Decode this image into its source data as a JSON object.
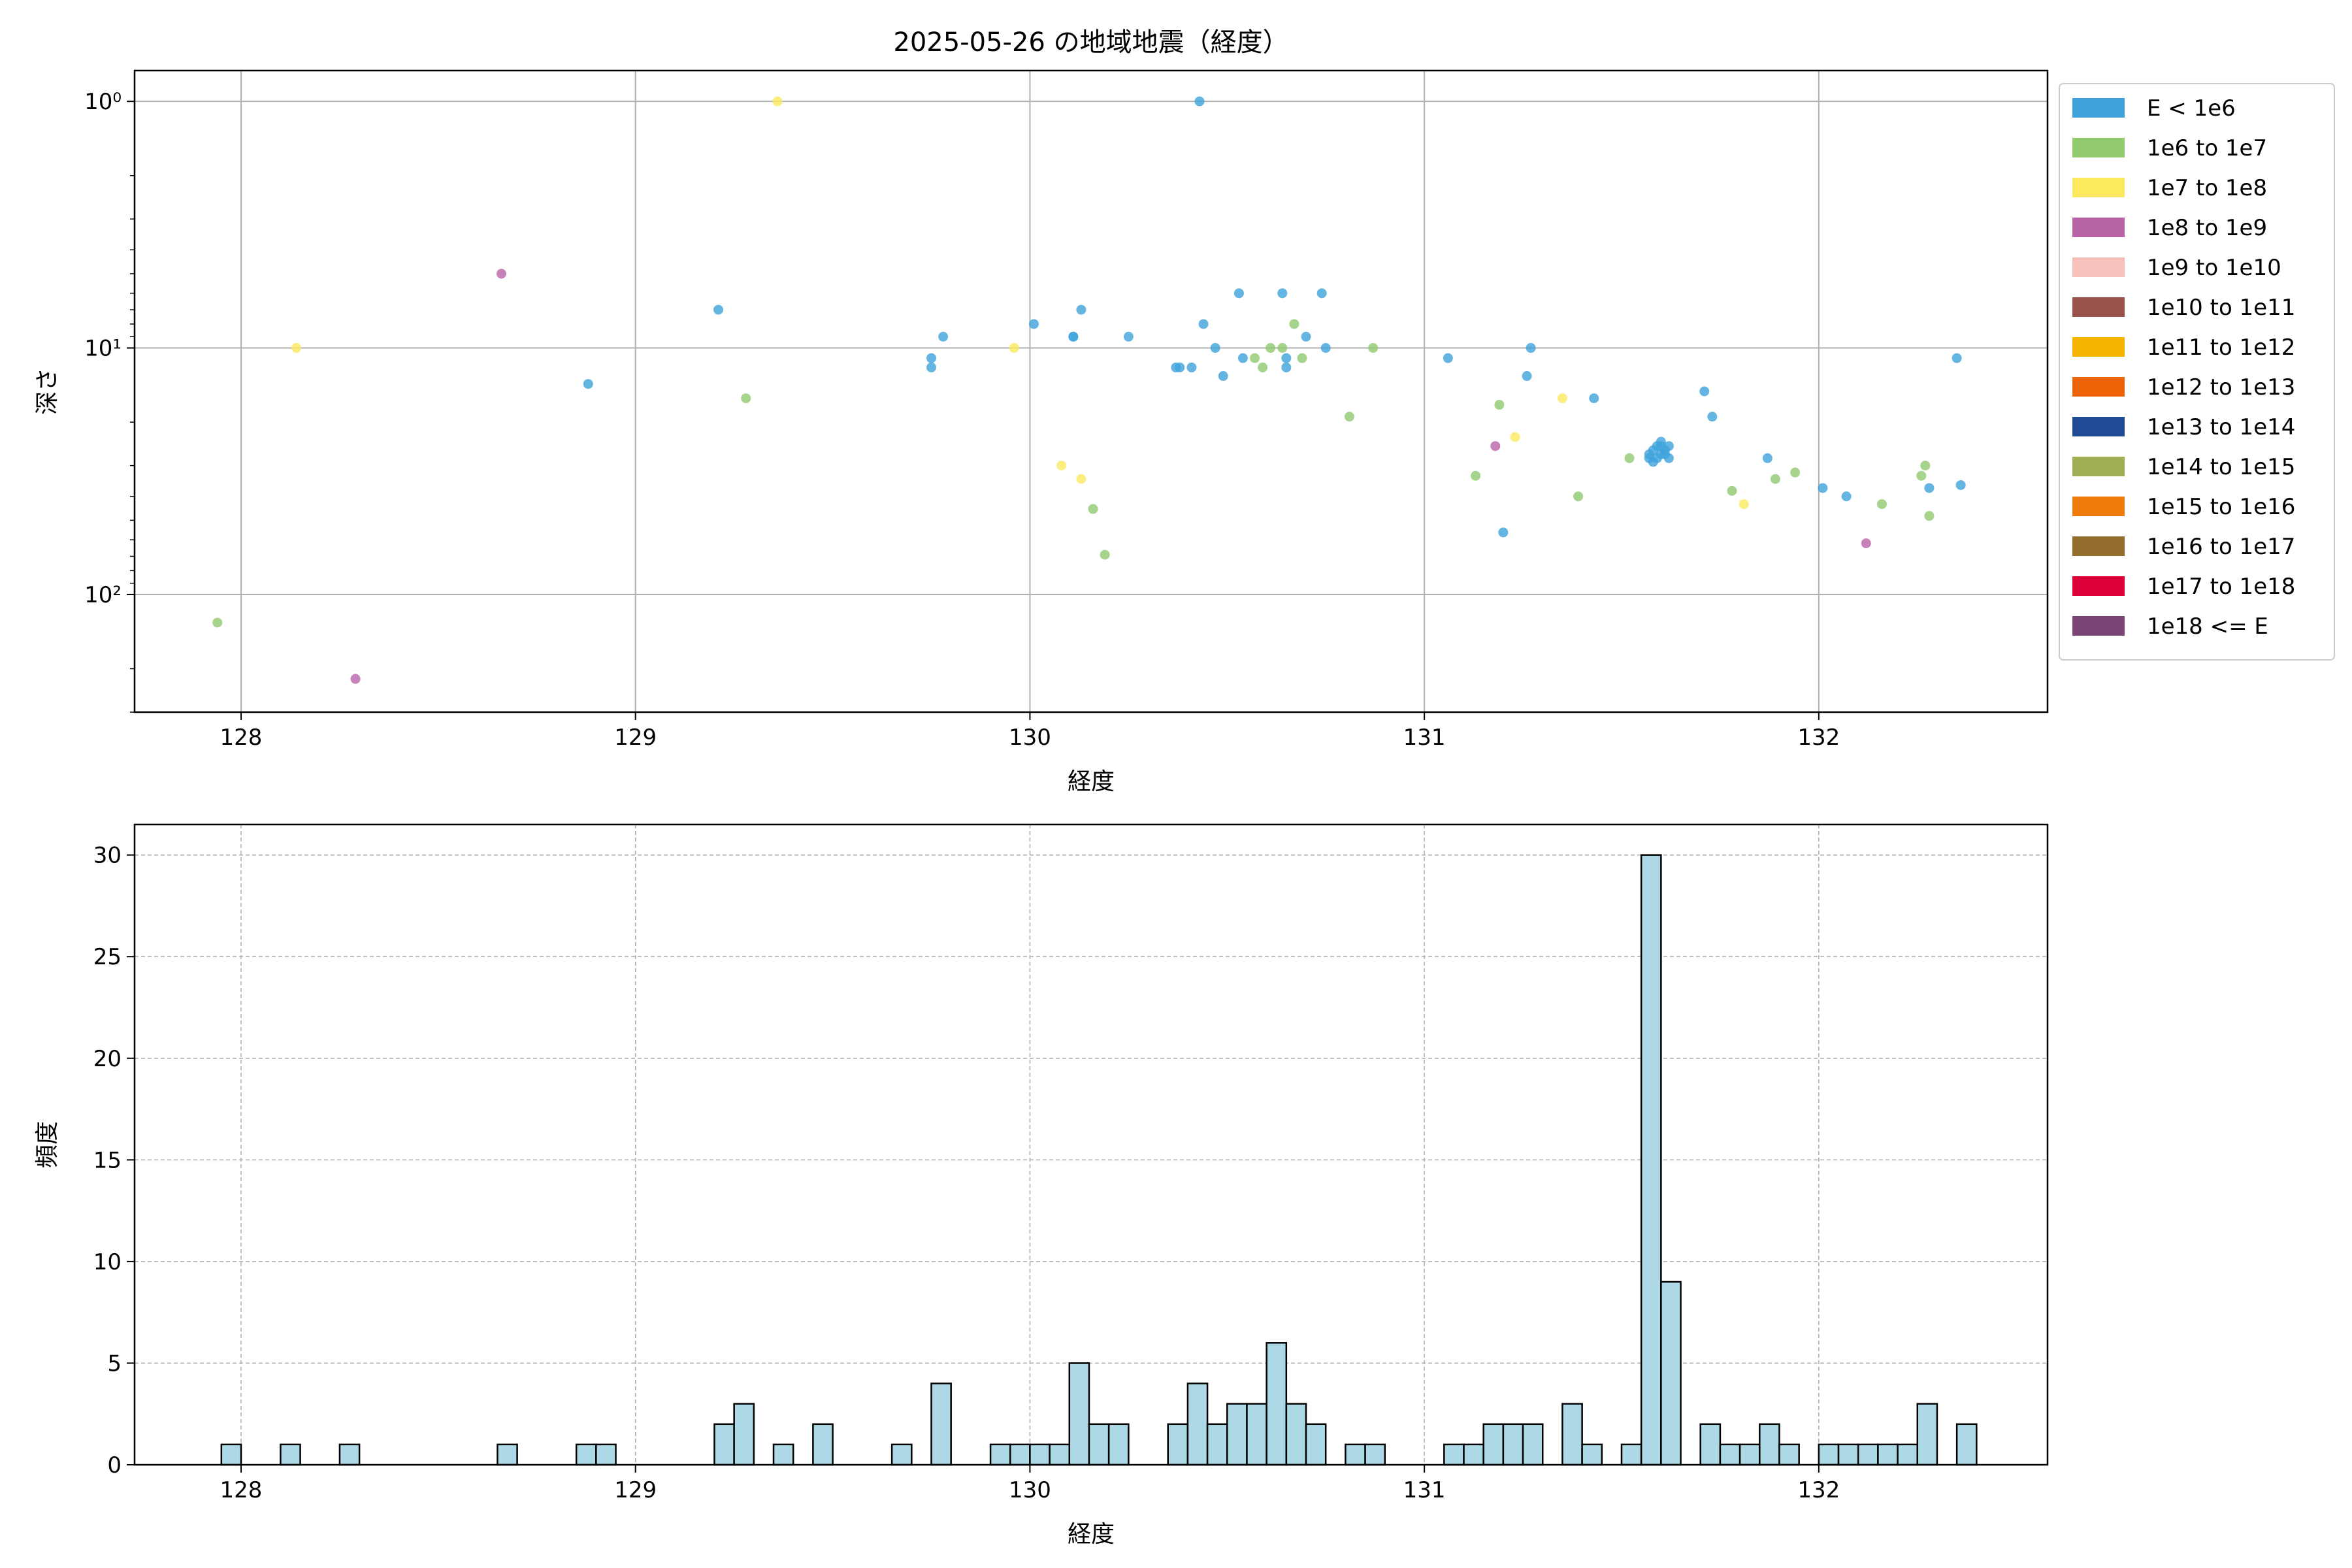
{
  "chart_data": [
    {
      "type": "scatter",
      "title": "2025-05-26 の地域地震（経度）",
      "xlabel": "経度",
      "ylabel": "深さ",
      "xlim": [
        127.73,
        132.58
      ],
      "ylim": [
        300,
        0.75
      ],
      "yscale": "log-inverted",
      "xticks": [
        128,
        129,
        130,
        131,
        132
      ],
      "yticks": [
        {
          "value": 1,
          "label": "10⁰"
        },
        {
          "value": 10,
          "label": "10¹"
        },
        {
          "value": 100,
          "label": "10²"
        }
      ],
      "grid": true,
      "legend": {
        "placement": "outside-right",
        "entries": [
          {
            "label": "E < 1e6",
            "color": "#3fa2dc"
          },
          {
            "label": "1e6 to 1e7",
            "color": "#91c96f"
          },
          {
            "label": "1e7 to 1e8",
            "color": "#fbea5e"
          },
          {
            "label": "1e8 to 1e9",
            "color": "#b963a7"
          },
          {
            "label": "1e9 to 1e10",
            "color": "#f6c0bb"
          },
          {
            "label": "1e10 to 1e11",
            "color": "#98534c"
          },
          {
            "label": "1e11 to 1e12",
            "color": "#f6b401"
          },
          {
            "label": "1e12 to 1e13",
            "color": "#ec6405"
          },
          {
            "label": "1e13 to 1e14",
            "color": "#1f4b95"
          },
          {
            "label": "1e14 to 1e15",
            "color": "#9eae55"
          },
          {
            "label": "1e15 to 1e16",
            "color": "#ee7b0a"
          },
          {
            "label": "1e16 to 1e17",
            "color": "#926d2c"
          },
          {
            "label": "1e17 to 1e18",
            "color": "#dc0039"
          },
          {
            "label": "1e18 <= E",
            "color": "#7a4474"
          }
        ]
      },
      "series": [
        {
          "name": "E < 1e6",
          "color": "#3fa2dc",
          "points": [
            [
              128.88,
              14
            ],
            [
              129.21,
              7
            ],
            [
              129.75,
              12
            ],
            [
              129.75,
              11
            ],
            [
              129.78,
              9
            ],
            [
              130.01,
              8
            ],
            [
              130.11,
              9
            ],
            [
              130.11,
              9
            ],
            [
              130.13,
              7
            ],
            [
              130.25,
              9
            ],
            [
              130.37,
              12
            ],
            [
              130.38,
              12
            ],
            [
              130.41,
              12
            ],
            [
              130.43,
              1
            ],
            [
              130.44,
              8
            ],
            [
              130.47,
              10
            ],
            [
              130.49,
              13
            ],
            [
              130.53,
              6
            ],
            [
              130.54,
              11
            ],
            [
              130.64,
              6
            ],
            [
              130.65,
              11
            ],
            [
              130.65,
              12
            ],
            [
              130.7,
              9
            ],
            [
              130.74,
              6
            ],
            [
              130.75,
              10
            ],
            [
              131.06,
              11
            ],
            [
              131.2,
              56
            ],
            [
              131.26,
              13
            ],
            [
              131.27,
              10
            ],
            [
              131.43,
              16
            ],
            [
              131.57,
              28
            ],
            [
              131.57,
              27
            ],
            [
              131.58,
              26
            ],
            [
              131.58,
              29
            ],
            [
              131.59,
              25
            ],
            [
              131.6,
              27
            ],
            [
              131.6,
              24
            ],
            [
              131.61,
              26
            ],
            [
              131.62,
              25
            ],
            [
              131.62,
              28
            ],
            [
              131.59,
              28
            ],
            [
              131.61,
              27
            ],
            [
              131.6,
              25
            ],
            [
              131.71,
              15
            ],
            [
              131.73,
              19
            ],
            [
              131.87,
              28
            ],
            [
              132.01,
              37
            ],
            [
              132.07,
              40
            ],
            [
              132.28,
              37
            ],
            [
              132.35,
              11
            ],
            [
              132.36,
              36
            ]
          ]
        },
        {
          "name": "1e6 to 1e7",
          "color": "#91c96f",
          "points": [
            [
              127.94,
              130
            ],
            [
              129.28,
              16
            ],
            [
              130.16,
              45
            ],
            [
              130.19,
              69
            ],
            [
              130.57,
              11
            ],
            [
              130.59,
              12
            ],
            [
              130.61,
              10
            ],
            [
              130.64,
              10
            ],
            [
              130.67,
              8
            ],
            [
              130.69,
              11
            ],
            [
              130.81,
              19
            ],
            [
              130.87,
              10
            ],
            [
              131.13,
              33
            ],
            [
              131.19,
              17
            ],
            [
              131.39,
              40
            ],
            [
              131.52,
              28
            ],
            [
              131.78,
              38
            ],
            [
              131.89,
              34
            ],
            [
              131.94,
              32
            ],
            [
              132.16,
              43
            ],
            [
              132.26,
              33
            ],
            [
              132.27,
              30
            ],
            [
              132.28,
              48
            ]
          ]
        },
        {
          "name": "1e7 to 1e8",
          "color": "#fbea5e",
          "points": [
            [
              128.14,
              10
            ],
            [
              129.36,
              1
            ],
            [
              129.96,
              10
            ],
            [
              130.08,
              30
            ],
            [
              130.13,
              34
            ],
            [
              131.23,
              23
            ],
            [
              131.35,
              16
            ],
            [
              131.81,
              43
            ]
          ]
        },
        {
          "name": "1e8 to 1e9",
          "color": "#b963a7",
          "points": [
            [
              128.29,
              220
            ],
            [
              128.66,
              5
            ],
            [
              131.18,
              25
            ],
            [
              132.12,
              62
            ]
          ]
        }
      ]
    },
    {
      "type": "bar",
      "title": "",
      "xlabel": "経度",
      "ylabel": "頻度",
      "xlim": [
        127.73,
        132.58
      ],
      "ylim": [
        0,
        31.5
      ],
      "xticks": [
        128,
        129,
        130,
        131,
        132
      ],
      "yticks": [
        0,
        5,
        10,
        15,
        20,
        25,
        30
      ],
      "grid": "dashed",
      "color": "#add8e6",
      "edgecolor": "#000000",
      "bin_width": 0.05,
      "bins": [
        {
          "x": 127.95,
          "count": 1
        },
        {
          "x": 128.1,
          "count": 1
        },
        {
          "x": 128.25,
          "count": 1
        },
        {
          "x": 128.65,
          "count": 1
        },
        {
          "x": 128.85,
          "count": 1
        },
        {
          "x": 128.9,
          "count": 1
        },
        {
          "x": 129.2,
          "count": 2
        },
        {
          "x": 129.25,
          "count": 3
        },
        {
          "x": 129.35,
          "count": 1
        },
        {
          "x": 129.45,
          "count": 2
        },
        {
          "x": 129.65,
          "count": 1
        },
        {
          "x": 129.75,
          "count": 4
        },
        {
          "x": 129.9,
          "count": 1
        },
        {
          "x": 129.95,
          "count": 1
        },
        {
          "x": 130.0,
          "count": 1
        },
        {
          "x": 130.05,
          "count": 1
        },
        {
          "x": 130.1,
          "count": 5
        },
        {
          "x": 130.15,
          "count": 2
        },
        {
          "x": 130.2,
          "count": 2
        },
        {
          "x": 130.35,
          "count": 2
        },
        {
          "x": 130.4,
          "count": 4
        },
        {
          "x": 130.45,
          "count": 2
        },
        {
          "x": 130.5,
          "count": 3
        },
        {
          "x": 130.55,
          "count": 3
        },
        {
          "x": 130.6,
          "count": 6
        },
        {
          "x": 130.65,
          "count": 3
        },
        {
          "x": 130.7,
          "count": 2
        },
        {
          "x": 130.8,
          "count": 1
        },
        {
          "x": 130.85,
          "count": 1
        },
        {
          "x": 131.05,
          "count": 1
        },
        {
          "x": 131.1,
          "count": 1
        },
        {
          "x": 131.15,
          "count": 2
        },
        {
          "x": 131.2,
          "count": 2
        },
        {
          "x": 131.25,
          "count": 2
        },
        {
          "x": 131.35,
          "count": 3
        },
        {
          "x": 131.4,
          "count": 1
        },
        {
          "x": 131.5,
          "count": 1
        },
        {
          "x": 131.55,
          "count": 30
        },
        {
          "x": 131.6,
          "count": 9
        },
        {
          "x": 131.7,
          "count": 2
        },
        {
          "x": 131.75,
          "count": 1
        },
        {
          "x": 131.8,
          "count": 1
        },
        {
          "x": 131.85,
          "count": 2
        },
        {
          "x": 131.9,
          "count": 1
        },
        {
          "x": 132.0,
          "count": 1
        },
        {
          "x": 132.05,
          "count": 1
        },
        {
          "x": 132.1,
          "count": 1
        },
        {
          "x": 132.15,
          "count": 1
        },
        {
          "x": 132.2,
          "count": 1
        },
        {
          "x": 132.25,
          "count": 3
        },
        {
          "x": 132.35,
          "count": 2
        }
      ]
    }
  ]
}
